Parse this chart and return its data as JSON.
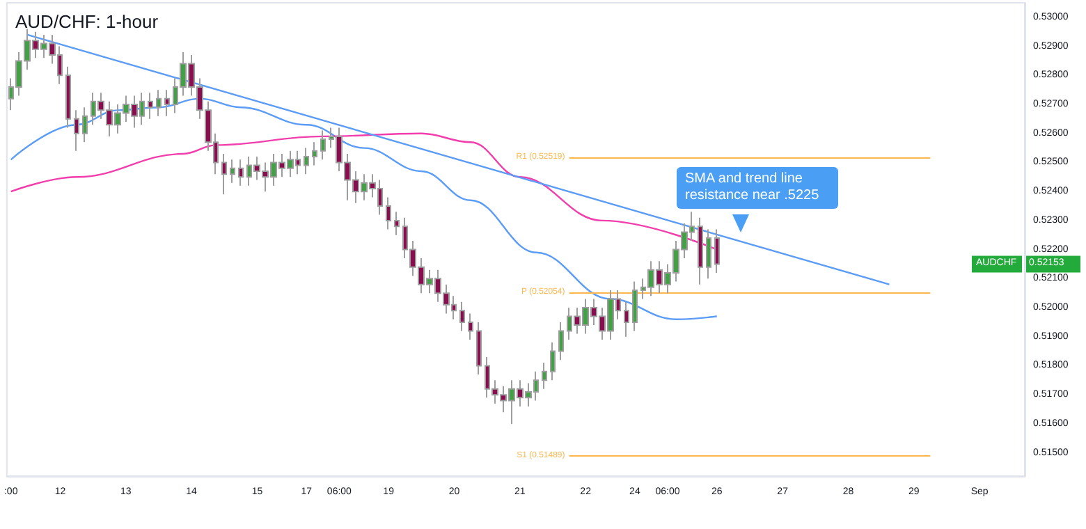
{
  "chart_data": {
    "type": "candlestick",
    "title": "AUD/CHF: 1-hour",
    "categories": [
      ":00",
      null,
      null,
      null,
      null,
      null,
      "12",
      null,
      null,
      null,
      null,
      null,
      null,
      null,
      "13",
      null,
      null,
      null,
      null,
      null,
      null,
      null,
      "14",
      null,
      null,
      null,
      null,
      null,
      null,
      null,
      "15",
      null,
      null,
      null,
      null,
      null,
      "17",
      null,
      null,
      null,
      "06:00",
      null,
      null,
      null,
      null,
      null,
      "19",
      null,
      null,
      null,
      null,
      null,
      null,
      null,
      "20",
      null,
      null,
      null,
      null,
      null,
      null,
      null,
      "21",
      null,
      null,
      null,
      null,
      null,
      null,
      null,
      "22",
      null,
      null,
      null,
      null,
      null,
      "24",
      null,
      null,
      null,
      "06:00",
      null,
      null,
      null,
      null,
      null,
      "26",
      null,
      null,
      null,
      null,
      null,
      null,
      null,
      "27",
      null,
      null,
      null,
      null,
      null,
      null,
      null,
      "28",
      null,
      null,
      null,
      null,
      null,
      null,
      null,
      "29",
      null,
      null,
      null,
      null,
      null,
      null,
      null,
      "Sep",
      null,
      null,
      null,
      null,
      null
    ],
    "ohlc": [
      [
        0.5272,
        0.5279,
        0.5268,
        0.5276
      ],
      [
        0.5276,
        0.5288,
        0.5273,
        0.5285
      ],
      [
        0.5285,
        0.5296,
        0.5282,
        0.5292
      ],
      [
        0.5292,
        0.5295,
        0.5286,
        0.5289
      ],
      [
        0.5289,
        0.5294,
        0.5286,
        0.5291
      ],
      [
        0.5291,
        0.5294,
        0.5284,
        0.5287
      ],
      [
        0.5287,
        0.529,
        0.5277,
        0.528
      ],
      [
        0.528,
        0.5283,
        0.5262,
        0.5265
      ],
      [
        0.5265,
        0.5268,
        0.5254,
        0.526
      ],
      [
        0.526,
        0.5269,
        0.5257,
        0.5266
      ],
      [
        0.5266,
        0.5274,
        0.5263,
        0.5271
      ],
      [
        0.5271,
        0.5274,
        0.5265,
        0.5268
      ],
      [
        0.5268,
        0.5271,
        0.5259,
        0.5263
      ],
      [
        0.5263,
        0.527,
        0.526,
        0.5267
      ],
      [
        0.5267,
        0.5273,
        0.5264,
        0.527
      ],
      [
        0.527,
        0.5273,
        0.5262,
        0.5266
      ],
      [
        0.5266,
        0.5274,
        0.5263,
        0.5271
      ],
      [
        0.5271,
        0.5274,
        0.5265,
        0.5269
      ],
      [
        0.5269,
        0.5275,
        0.5266,
        0.5272
      ],
      [
        0.5272,
        0.5275,
        0.5266,
        0.527
      ],
      [
        0.527,
        0.5279,
        0.5267,
        0.5276
      ],
      [
        0.5276,
        0.5288,
        0.5273,
        0.5284
      ],
      [
        0.5284,
        0.5287,
        0.5273,
        0.5276
      ],
      [
        0.5276,
        0.5279,
        0.5265,
        0.5268
      ],
      [
        0.5268,
        0.5271,
        0.5254,
        0.5257
      ],
      [
        0.5257,
        0.526,
        0.5246,
        0.525
      ],
      [
        0.525,
        0.5253,
        0.5239,
        0.5246
      ],
      [
        0.5246,
        0.5251,
        0.5243,
        0.5248
      ],
      [
        0.5248,
        0.5251,
        0.5242,
        0.5245
      ],
      [
        0.5245,
        0.5252,
        0.5242,
        0.5249
      ],
      [
        0.5249,
        0.5252,
        0.5244,
        0.5247
      ],
      [
        0.5247,
        0.525,
        0.524,
        0.5245
      ],
      [
        0.5245,
        0.5253,
        0.5242,
        0.525
      ],
      [
        0.525,
        0.5253,
        0.5245,
        0.5248
      ],
      [
        0.5248,
        0.5254,
        0.5245,
        0.5251
      ],
      [
        0.5251,
        0.5254,
        0.5246,
        0.5249
      ],
      [
        0.5249,
        0.5255,
        0.5246,
        0.5252
      ],
      [
        0.5252,
        0.5257,
        0.5249,
        0.5254
      ],
      [
        0.5254,
        0.5261,
        0.5251,
        0.5258
      ],
      [
        0.5258,
        0.5262,
        0.5255,
        0.5259
      ],
      [
        0.5259,
        0.5262,
        0.5247,
        0.525
      ],
      [
        0.525,
        0.5253,
        0.5237,
        0.5244
      ],
      [
        0.5244,
        0.5247,
        0.5236,
        0.524
      ],
      [
        0.524,
        0.5246,
        0.5237,
        0.5243
      ],
      [
        0.5243,
        0.5246,
        0.5238,
        0.5241
      ],
      [
        0.5241,
        0.5244,
        0.5232,
        0.5235
      ],
      [
        0.5235,
        0.5238,
        0.5227,
        0.523
      ],
      [
        0.523,
        0.5233,
        0.5225,
        0.5228
      ],
      [
        0.5228,
        0.5231,
        0.5217,
        0.522
      ],
      [
        0.522,
        0.5223,
        0.5211,
        0.5214
      ],
      [
        0.5214,
        0.5217,
        0.5205,
        0.5208
      ],
      [
        0.5208,
        0.5213,
        0.5205,
        0.521
      ],
      [
        0.521,
        0.5213,
        0.5202,
        0.5205
      ],
      [
        0.5205,
        0.5208,
        0.5198,
        0.5201
      ],
      [
        0.5201,
        0.5204,
        0.5196,
        0.5199
      ],
      [
        0.5199,
        0.5202,
        0.5192,
        0.5195
      ],
      [
        0.5195,
        0.5198,
        0.5189,
        0.5192
      ],
      [
        0.5192,
        0.5195,
        0.5177,
        0.518
      ],
      [
        0.518,
        0.5183,
        0.5169,
        0.5172
      ],
      [
        0.5172,
        0.5175,
        0.5167,
        0.517
      ],
      [
        0.517,
        0.5173,
        0.5164,
        0.5168
      ],
      [
        0.5168,
        0.5175,
        0.516,
        0.5172
      ],
      [
        0.5172,
        0.5175,
        0.5166,
        0.5169
      ],
      [
        0.5169,
        0.5174,
        0.5166,
        0.5171
      ],
      [
        0.5171,
        0.5178,
        0.5168,
        0.5175
      ],
      [
        0.5175,
        0.5181,
        0.5172,
        0.5178
      ],
      [
        0.5178,
        0.5188,
        0.5175,
        0.5185
      ],
      [
        0.5185,
        0.5195,
        0.5182,
        0.5192
      ],
      [
        0.5192,
        0.52,
        0.5189,
        0.5197
      ],
      [
        0.5197,
        0.52,
        0.5191,
        0.5194
      ],
      [
        0.5194,
        0.5203,
        0.5191,
        0.52
      ],
      [
        0.52,
        0.5203,
        0.5194,
        0.5197
      ],
      [
        0.5197,
        0.52,
        0.5189,
        0.5192
      ],
      [
        0.5192,
        0.5206,
        0.5189,
        0.5203
      ],
      [
        0.5203,
        0.5206,
        0.5196,
        0.5199
      ],
      [
        0.5199,
        0.5202,
        0.519,
        0.5195
      ],
      [
        0.5195,
        0.5209,
        0.5192,
        0.5206
      ],
      [
        0.5206,
        0.521,
        0.5203,
        0.5207
      ],
      [
        0.5207,
        0.5216,
        0.5204,
        0.5213
      ],
      [
        0.5213,
        0.5216,
        0.5205,
        0.5208
      ],
      [
        0.5208,
        0.5215,
        0.5205,
        0.5212
      ],
      [
        0.5212,
        0.5223,
        0.5209,
        0.522
      ],
      [
        0.522,
        0.5229,
        0.5217,
        0.5226
      ],
      [
        0.5226,
        0.5233,
        0.5223,
        0.5228
      ],
      [
        0.5228,
        0.5231,
        0.5208,
        0.5214
      ],
      [
        0.5214,
        0.5227,
        0.521,
        0.5224
      ],
      [
        0.5224,
        0.5227,
        0.5212,
        0.5215
      ],
      null,
      null,
      null,
      null,
      null,
      null,
      null,
      null,
      null,
      null,
      null,
      null,
      null,
      null,
      null,
      null,
      null,
      null,
      null,
      null,
      null,
      null,
      null,
      null,
      null,
      null,
      null,
      null,
      null,
      null,
      null,
      null,
      null,
      null,
      null,
      null,
      null
    ],
    "series": [
      {
        "type": "line",
        "color": "#5b9cf6",
        "values": [
          0.5251,
          null,
          null,
          null,
          null,
          null,
          null,
          null,
          0.5263,
          null,
          null,
          null,
          null,
          0.5268,
          null,
          null,
          null,
          null,
          0.5269,
          null,
          null,
          null,
          null,
          0.5272,
          null,
          null,
          null,
          null,
          0.5269,
          null,
          null,
          null,
          null,
          null,
          null,
          null,
          0.5263,
          null,
          null,
          null,
          null,
          null,
          null,
          0.5255,
          null,
          null,
          null,
          null,
          null,
          null,
          0.5247,
          null,
          null,
          null,
          null,
          null,
          0.5237,
          null,
          null,
          null,
          null,
          null,
          null,
          null,
          0.5219,
          null,
          null,
          null,
          null,
          null,
          null,
          null,
          null,
          0.5203,
          null,
          null,
          null,
          null,
          null,
          null,
          null,
          0.5196,
          null,
          null,
          null,
          null,
          0.5197,
          null,
          null,
          null,
          null,
          null,
          null,
          null,
          null,
          null,
          null,
          null,
          null,
          null,
          null,
          null,
          null,
          null,
          null,
          null,
          null,
          null,
          null,
          null,
          null,
          null,
          null,
          null,
          null,
          null,
          null,
          null,
          null,
          null,
          null,
          null,
          null,
          null
        ]
      },
      {
        "type": "line",
        "color": "#f23dad",
        "values": [
          0.524,
          null,
          null,
          null,
          null,
          null,
          null,
          null,
          0.5245,
          null,
          null,
          null,
          null,
          null,
          null,
          null,
          null,
          null,
          null,
          null,
          null,
          0.5253,
          null,
          null,
          null,
          0.5256,
          null,
          null,
          null,
          null,
          null,
          null,
          null,
          null,
          null,
          null,
          null,
          null,
          0.5259,
          null,
          null,
          null,
          null,
          null,
          null,
          null,
          null,
          null,
          null,
          null,
          0.526,
          null,
          null,
          null,
          null,
          null,
          0.5257,
          null,
          null,
          null,
          null,
          null,
          0.5245,
          null,
          null,
          null,
          null,
          null,
          null,
          null,
          null,
          null,
          0.523,
          null,
          null,
          null,
          null,
          null,
          null,
          null,
          null,
          null,
          null,
          null,
          null,
          null,
          0.522,
          null,
          null,
          null,
          null,
          null,
          null,
          null,
          null,
          null,
          null,
          null,
          null,
          null,
          null,
          null,
          null,
          null,
          null,
          null,
          null,
          null,
          null,
          null,
          null,
          null,
          null,
          null,
          null,
          null,
          null,
          null,
          null,
          null,
          null,
          null,
          null,
          null
        ]
      },
      {
        "type": "line",
        "color": "#5b9cf6",
        "values": [
          null,
          null,
          0.5294,
          null,
          null,
          null,
          null,
          null,
          null,
          null,
          null,
          null,
          null,
          null,
          null,
          null,
          null,
          null,
          null,
          null,
          null,
          null,
          null,
          null,
          null,
          null,
          null,
          null,
          null,
          null,
          null,
          null,
          null,
          null,
          null,
          null,
          null,
          null,
          null,
          null,
          null,
          null,
          null,
          null,
          null,
          null,
          null,
          null,
          null,
          null,
          null,
          null,
          null,
          null,
          null,
          null,
          null,
          null,
          null,
          null,
          null,
          null,
          null,
          null,
          null,
          null,
          null,
          null,
          null,
          null,
          null,
          null,
          null,
          null,
          null,
          null,
          null,
          null,
          null,
          null,
          null,
          null,
          null,
          null,
          null,
          null,
          null,
          null,
          null,
          null,
          null,
          null,
          null,
          null,
          null,
          null,
          null,
          null,
          null,
          null,
          null,
          null,
          null,
          null,
          null,
          null,
          null,
          0.5208,
          null,
          null,
          null,
          null,
          null,
          null,
          null,
          null,
          null,
          null,
          null,
          null,
          null,
          null,
          null,
          null
        ]
      }
    ],
    "ref_lines": [
      {
        "axis": "y",
        "value": 0.52519,
        "label": "R1 (0.52519)",
        "color": "#ffb74d"
      },
      {
        "axis": "y",
        "value": 0.52054,
        "label": "P (0.52054)",
        "color": "#ffb74d"
      },
      {
        "axis": "y",
        "value": 0.51489,
        "label": "S1 (0.51489)",
        "color": "#ffb74d"
      }
    ],
    "annotations": [
      "SMA and trend line resistance near .5225",
      "AUDCHF",
      "0.52153"
    ],
    "ylim": [
      0.5142,
      0.5305
    ],
    "yticks": [
      {
        "value": 0.515,
        "label": "0.51500"
      },
      {
        "value": 0.516,
        "label": "0.51600"
      },
      {
        "value": 0.517,
        "label": "0.51700"
      },
      {
        "value": 0.518,
        "label": "0.51800"
      },
      {
        "value": 0.519,
        "label": "0.51900"
      },
      {
        "value": 0.52,
        "label": "0.52000"
      },
      {
        "value": 0.521,
        "label": "0.52100"
      },
      {
        "value": 0.522,
        "label": "0.52200"
      },
      {
        "value": 0.523,
        "label": "0.52300"
      },
      {
        "value": 0.524,
        "label": "0.52400"
      },
      {
        "value": 0.525,
        "label": "0.52500"
      },
      {
        "value": 0.526,
        "label": "0.52600"
      },
      {
        "value": 0.527,
        "label": "0.52700"
      },
      {
        "value": 0.528,
        "label": "0.52800"
      },
      {
        "value": 0.529,
        "label": "0.52900"
      },
      {
        "value": 0.53,
        "label": "0.53000"
      }
    ],
    "grid": false
  }
}
